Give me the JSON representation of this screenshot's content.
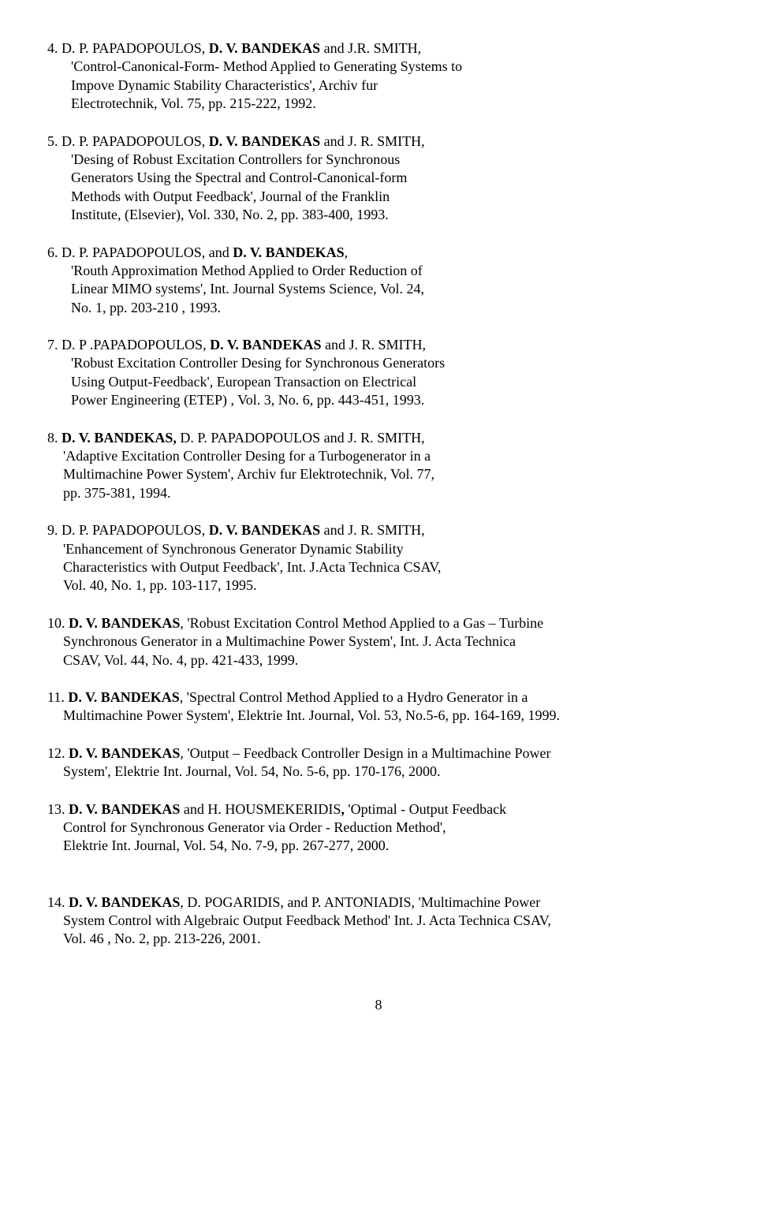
{
  "refs": [
    {
      "num": "4.",
      "lines": [
        " D. P. PAPADOPOULOS, <b>D. V. BANDEKAS</b> and J.R. SMITH,",
        "'Control-Canonical-Form- Method Applied to Generating Systems to",
        "Impove Dynamic Stability Characteristics', Archiv fur",
        "Electrotechnik, Vol. 75, pp. 215-222, 1992."
      ]
    },
    {
      "num": "5.",
      "lines": [
        " D. P. PAPADOPOULOS, <b>D. V. BANDEKAS</b> and J. R. SMITH,",
        "'Desing of Robust Excitation Controllers  for Synchronous",
        "Generators Using the Spectral and Control-Canonical-form",
        "Methods with Output Feedback', Journal of the Franklin",
        "Institute, (Elsevier), Vol. 330, No. 2, pp. 383-400, 1993."
      ]
    },
    {
      "num": "6.",
      "lines": [
        " D. P. PAPADOPOULOS, and <b>D. V. BANDEKAS</b>,",
        "'Routh Approximation Method Applied to Order Reduction of",
        "Linear MIMO systems', Int. Journal Systems Science, Vol. 24,",
        "No. 1,  pp.  203-210 , 1993."
      ]
    },
    {
      "num": "7.",
      "lines": [
        " D. P .PAPADOPOULOS, <b>D. V. BANDEKAS</b> and  J. R. SMITH,",
        "'Robust Excitation Controller Desing for Synchronous Generators",
        "Using  Output-Feedback', European  Transaction on Electrical",
        "Power  Engineering (ETEP) , Vol. 3, No. 6, pp. 443-451, 1993."
      ]
    },
    {
      "num": "8.",
      "lines": [
        " <b>D. V. BANDEKAS,</b> D. P. PAPADOPOULOS and J. R. SMITH,",
        "'Adaptive Excitation Controller Desing for a Turbogenerator  in a",
        "Multimachine  Power System', Archiv fur Elektrotechnik, Vol. 77,",
        "pp. 375-381, 1994."
      ]
    },
    {
      "num": "9.",
      "lines": [
        " D. P. PAPADOPOULOS, <b>D. V. BANDEKAS</b> and J. R. SMITH,",
        "'Enhancement of Synchronous  Generator Dynamic Stability",
        "Characteristics with Output Feedback', Int. J.Acta Technica CSAV,",
        "Vol. 40,  No. 1, pp. 103-117, 1995."
      ]
    },
    {
      "num": "10.",
      "lines": [
        " <b>D. V. BANDEKAS</b>, 'Robust Excitation Control Method Applied to a Gas – Turbine",
        "Synchronous Generator in a Multimachine Power System', Int. J. Acta Technica",
        "CSAV,  Vol. 44, No. 4, pp. 421-433, 1999."
      ]
    },
    {
      "num": "11.",
      "lines": [
        " <b>D. V. BANDEKAS</b>, 'Spectral Control Method Applied to a Hydro Generator in a",
        "Multimachine Power System', Elektrie Int. Journal, Vol. 53, No.5-6, pp. 164-169, 1999."
      ]
    },
    {
      "num": "12.",
      "lines": [
        " <b>D. V. BANDEKAS</b>, 'Output – Feedback Controller Design in a Multimachine Power",
        "System', Elektrie Int. Journal, Vol. 54, No. 5-6, pp. 170-176, 2000."
      ]
    },
    {
      "num": "13.",
      "lines": [
        " <b>D. V. BANDEKAS</b> and H. HOUSMEKERIDIS<b>,</b>  'Optimal - Output Feedback",
        "Control for Synchronous Generator via Order - Reduction Method',",
        "Elektrie Int. Journal, Vol. 54,  No. 7-9, pp. 267-277, 2000."
      ]
    },
    {
      "num": "14.",
      "lines": [
        " <b>D. V. BANDEKAS</b>,  D. POGARIDIS, and P. ANTONIADIS, 'Multimachine Power",
        "System Control with Algebraic Output Feedback Method' Int. J. Acta Technica CSAV,",
        "Vol. 46 , No. 2,  pp. 213-226, 2001."
      ]
    }
  ],
  "pageNumber": "8",
  "indentSmallFrom": 8,
  "spacer13_14": true
}
